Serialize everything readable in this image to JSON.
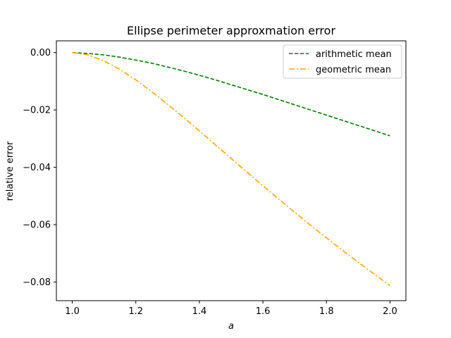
{
  "chart_data": {
    "type": "line",
    "title": "Ellipse perimeter approxmation error",
    "xlabel": "a",
    "ylabel": "relative error",
    "xlim": [
      0.95,
      2.05
    ],
    "ylim": [
      -0.0865,
      0.0041
    ],
    "x_ticks": [
      1.0,
      1.2,
      1.4,
      1.6,
      1.8,
      2.0
    ],
    "x_tick_labels": [
      "1.0",
      "1.2",
      "1.4",
      "1.6",
      "1.8",
      "2.0"
    ],
    "y_ticks": [
      0.0,
      -0.02,
      -0.04,
      -0.06,
      -0.08
    ],
    "y_tick_labels": [
      "0.00",
      "−0.02",
      "−0.04",
      "−0.06",
      "−0.08"
    ],
    "grid": false,
    "legend_position": "top-right",
    "x": [
      1.0,
      1.05,
      1.1,
      1.15,
      1.2,
      1.25,
      1.3,
      1.35,
      1.4,
      1.45,
      1.5,
      1.55,
      1.6,
      1.65,
      1.7,
      1.75,
      1.8,
      1.85,
      1.9,
      1.95,
      2.0
    ],
    "series": [
      {
        "name": "arithmetic mean",
        "color": "#008000",
        "dash": "dashed",
        "values": [
          0.0,
          -0.0003,
          -0.0008,
          -0.0016,
          -0.0026,
          -0.0037,
          -0.005,
          -0.0064,
          -0.0079,
          -0.0095,
          -0.0112,
          -0.0129,
          -0.0146,
          -0.0164,
          -0.0182,
          -0.02,
          -0.0218,
          -0.0236,
          -0.0254,
          -0.0272,
          -0.029
        ]
      },
      {
        "name": "geometric mean",
        "color": "#ffa500",
        "dash": "dashdot",
        "values": [
          0.0,
          -0.0008,
          -0.0029,
          -0.0059,
          -0.0095,
          -0.0136,
          -0.018,
          -0.0226,
          -0.0273,
          -0.0321,
          -0.0369,
          -0.0417,
          -0.0464,
          -0.0511,
          -0.0557,
          -0.0602,
          -0.0646,
          -0.0689,
          -0.0731,
          -0.0772,
          -0.0812
        ]
      }
    ]
  }
}
